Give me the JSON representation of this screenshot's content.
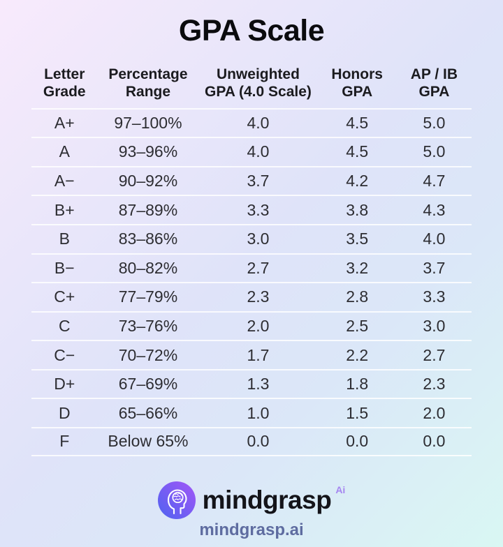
{
  "chart_data": {
    "type": "table",
    "title": "GPA Scale",
    "columns": [
      "Letter Grade",
      "Percentage Range",
      "Unweighted GPA (4.0 Scale)",
      "Honors GPA",
      "AP / IB GPA"
    ],
    "column_labels_two_line": [
      "Letter\nGrade",
      "Percentage\nRange",
      "Unweighted\nGPA (4.0 Scale)",
      "Honors\nGPA",
      "AP / IB\nGPA"
    ],
    "rows": [
      [
        "A+",
        "97–100%",
        "4.0",
        "4.5",
        "5.0"
      ],
      [
        "A",
        "93–96%",
        "4.0",
        "4.5",
        "5.0"
      ],
      [
        "A−",
        "90–92%",
        "3.7",
        "4.2",
        "4.7"
      ],
      [
        "B+",
        "87–89%",
        "3.3",
        "3.8",
        "4.3"
      ],
      [
        "B",
        "83–86%",
        "3.0",
        "3.5",
        "4.0"
      ],
      [
        "B−",
        "80–82%",
        "2.7",
        "3.2",
        "3.7"
      ],
      [
        "C+",
        "77–79%",
        "2.3",
        "2.8",
        "3.3"
      ],
      [
        "C",
        "73–76%",
        "2.0",
        "2.5",
        "3.0"
      ],
      [
        "C−",
        "70–72%",
        "1.7",
        "2.2",
        "2.7"
      ],
      [
        "D+",
        "67–69%",
        "1.3",
        "1.8",
        "2.3"
      ],
      [
        "D",
        "65–66%",
        "1.0",
        "1.5",
        "2.0"
      ],
      [
        "F",
        "Below 65%",
        "0.0",
        "0.0",
        "0.0"
      ]
    ]
  },
  "footer": {
    "brand": "mindgrasp",
    "brand_superscript": "Ai",
    "url": "mindgrasp.ai",
    "logo_icon": "mindgrasp-head-brain-logo"
  },
  "colors": {
    "background_top_left": "#f8eafc",
    "background_middle": "#dfe3f9",
    "background_bottom_right": "#d9f7f3",
    "title_text": "#0b0b0e",
    "table_text": "#2d2d32",
    "divider": "rgba(255,255,255,0.82)",
    "logo_gradient_start": "#4e63f0",
    "logo_gradient_end": "#a356f7",
    "brand_superscript": "#a586f0",
    "brand_url_text": "#5e6ca0"
  }
}
